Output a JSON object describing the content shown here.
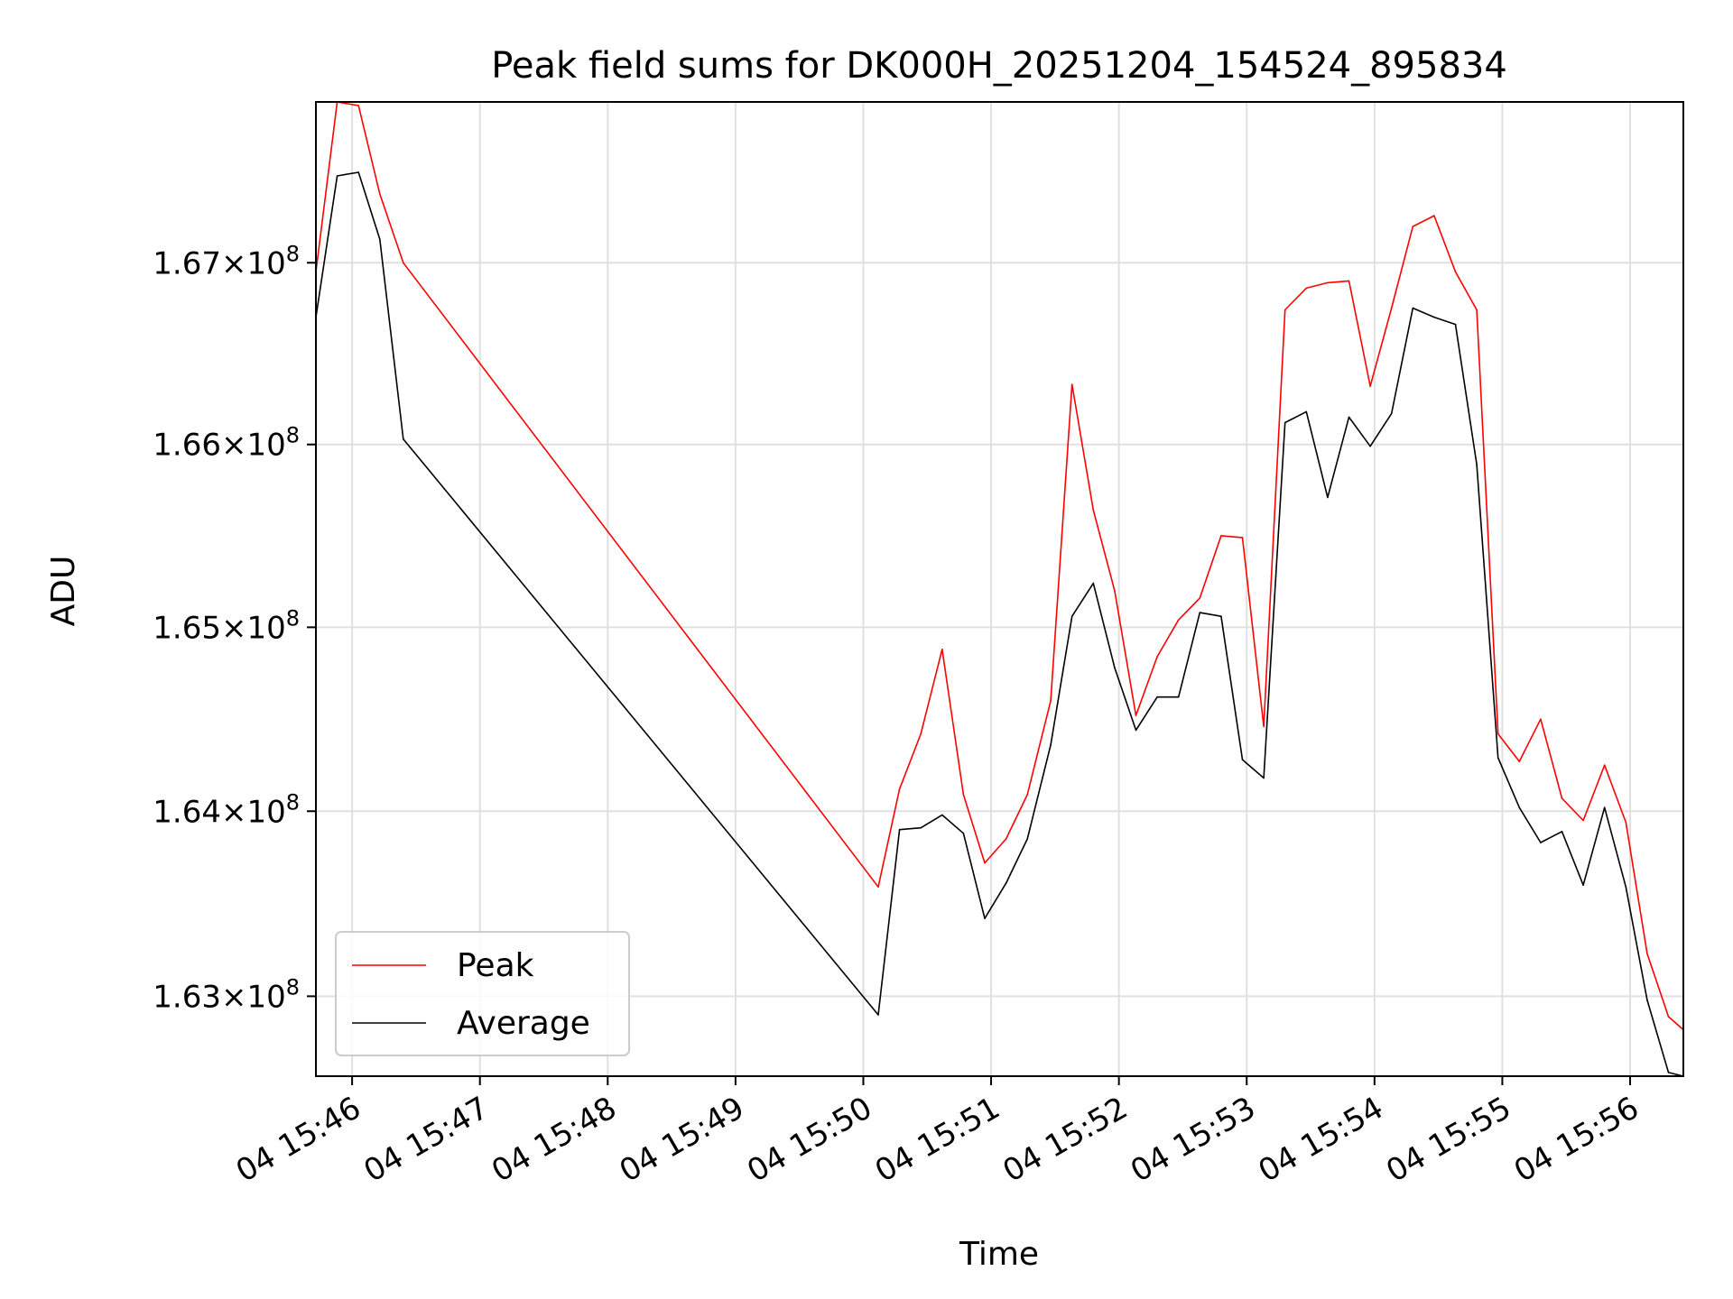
{
  "chart_data": {
    "type": "line",
    "title": "Peak field sums for DK000H_20251204_154524_895834",
    "xlabel": "Time",
    "ylabel": "ADU",
    "x_tick_labels": [
      "04 15:46",
      "04 15:47",
      "04 15:48",
      "04 15:49",
      "04 15:50",
      "04 15:51",
      "04 15:52",
      "04 15:53",
      "04 15:54",
      "04 15:55",
      "04 15:56"
    ],
    "y_tick_labels": [
      {
        "value": 163000000,
        "mantissa": "1.63",
        "exp": "8"
      },
      {
        "value": 164000000,
        "mantissa": "1.64",
        "exp": "8"
      },
      {
        "value": 165000000,
        "mantissa": "1.65",
        "exp": "8"
      },
      {
        "value": 166000000,
        "mantissa": "1.66",
        "exp": "8"
      },
      {
        "value": 167000000,
        "mantissa": "1.67",
        "exp": "8"
      }
    ],
    "x_range": [
      "2025-12-04 15:45:43",
      "2025-12-04 15:56:25"
    ],
    "y_range": [
      162570000,
      167890000
    ],
    "y_scale": "log",
    "grid": true,
    "legend_position": "lower-left",
    "series": [
      {
        "name": "Peak",
        "color": "#ff0000",
        "x": [
          "2025-12-04 15:45:43",
          "2025-12-04 15:45:53",
          "2025-12-04 15:46:03",
          "2025-12-04 15:46:13",
          "2025-12-04 15:46:24",
          "2025-12-04 15:50:07",
          "2025-12-04 15:50:17",
          "2025-12-04 15:50:27",
          "2025-12-04 15:50:37",
          "2025-12-04 15:50:47",
          "2025-12-04 15:50:57",
          "2025-12-04 15:51:07",
          "2025-12-04 15:51:17",
          "2025-12-04 15:51:28",
          "2025-12-04 15:51:38",
          "2025-12-04 15:51:48",
          "2025-12-04 15:51:58",
          "2025-12-04 15:52:08",
          "2025-12-04 15:52:18",
          "2025-12-04 15:52:28",
          "2025-12-04 15:52:38",
          "2025-12-04 15:52:48",
          "2025-12-04 15:52:58",
          "2025-12-04 15:53:08",
          "2025-12-04 15:53:18",
          "2025-12-04 15:53:28",
          "2025-12-04 15:53:38",
          "2025-12-04 15:53:48",
          "2025-12-04 15:53:58",
          "2025-12-04 15:54:08",
          "2025-12-04 15:54:18",
          "2025-12-04 15:54:28",
          "2025-12-04 15:54:38",
          "2025-12-04 15:54:48",
          "2025-12-04 15:54:58",
          "2025-12-04 15:55:08",
          "2025-12-04 15:55:18",
          "2025-12-04 15:55:28",
          "2025-12-04 15:55:38",
          "2025-12-04 15:55:48",
          "2025-12-04 15:55:58",
          "2025-12-04 15:56:08",
          "2025-12-04 15:56:18",
          "2025-12-04 15:56:25"
        ],
        "values": [
          166950000,
          167890000,
          167870000,
          167380000,
          167000000,
          163590000,
          164120000,
          164420000,
          164880000,
          164090000,
          163720000,
          163850000,
          164090000,
          164600000,
          166330000,
          165640000,
          165200000,
          164520000,
          164840000,
          165040000,
          165160000,
          165500000,
          165490000,
          164460000,
          166740000,
          166860000,
          166890000,
          166900000,
          166320000,
          166750000,
          167200000,
          167260000,
          166950000,
          166740000,
          164420000,
          164270000,
          164500000,
          164070000,
          163950000,
          164250000,
          163940000,
          163230000,
          162890000,
          162820000
        ]
      },
      {
        "name": "Average",
        "color": "#000000",
        "x": [
          "2025-12-04 15:45:43",
          "2025-12-04 15:45:53",
          "2025-12-04 15:46:03",
          "2025-12-04 15:46:13",
          "2025-12-04 15:46:24",
          "2025-12-04 15:50:07",
          "2025-12-04 15:50:17",
          "2025-12-04 15:50:27",
          "2025-12-04 15:50:37",
          "2025-12-04 15:50:47",
          "2025-12-04 15:50:57",
          "2025-12-04 15:51:07",
          "2025-12-04 15:51:17",
          "2025-12-04 15:51:28",
          "2025-12-04 15:51:38",
          "2025-12-04 15:51:48",
          "2025-12-04 15:51:58",
          "2025-12-04 15:52:08",
          "2025-12-04 15:52:18",
          "2025-12-04 15:52:28",
          "2025-12-04 15:52:38",
          "2025-12-04 15:52:48",
          "2025-12-04 15:52:58",
          "2025-12-04 15:53:08",
          "2025-12-04 15:53:18",
          "2025-12-04 15:53:28",
          "2025-12-04 15:53:38",
          "2025-12-04 15:53:48",
          "2025-12-04 15:53:58",
          "2025-12-04 15:54:08",
          "2025-12-04 15:54:18",
          "2025-12-04 15:54:28",
          "2025-12-04 15:54:38",
          "2025-12-04 15:54:48",
          "2025-12-04 15:54:58",
          "2025-12-04 15:55:08",
          "2025-12-04 15:55:18",
          "2025-12-04 15:55:28",
          "2025-12-04 15:55:38",
          "2025-12-04 15:55:48",
          "2025-12-04 15:55:58",
          "2025-12-04 15:56:08",
          "2025-12-04 15:56:18",
          "2025-12-04 15:56:25"
        ],
        "values": [
          166700000,
          167480000,
          167500000,
          167130000,
          166030000,
          162900000,
          163900000,
          163910000,
          163980000,
          163880000,
          163420000,
          163610000,
          163850000,
          164360000,
          165060000,
          165240000,
          164780000,
          164440000,
          164620000,
          164620000,
          165080000,
          165060000,
          164280000,
          164180000,
          166120000,
          166180000,
          165710000,
          166150000,
          165990000,
          166170000,
          166750000,
          166700000,
          166660000,
          165890000,
          164290000,
          164020000,
          163830000,
          163890000,
          163600000,
          164020000,
          163590000,
          162980000,
          162590000,
          162570000
        ]
      }
    ]
  }
}
